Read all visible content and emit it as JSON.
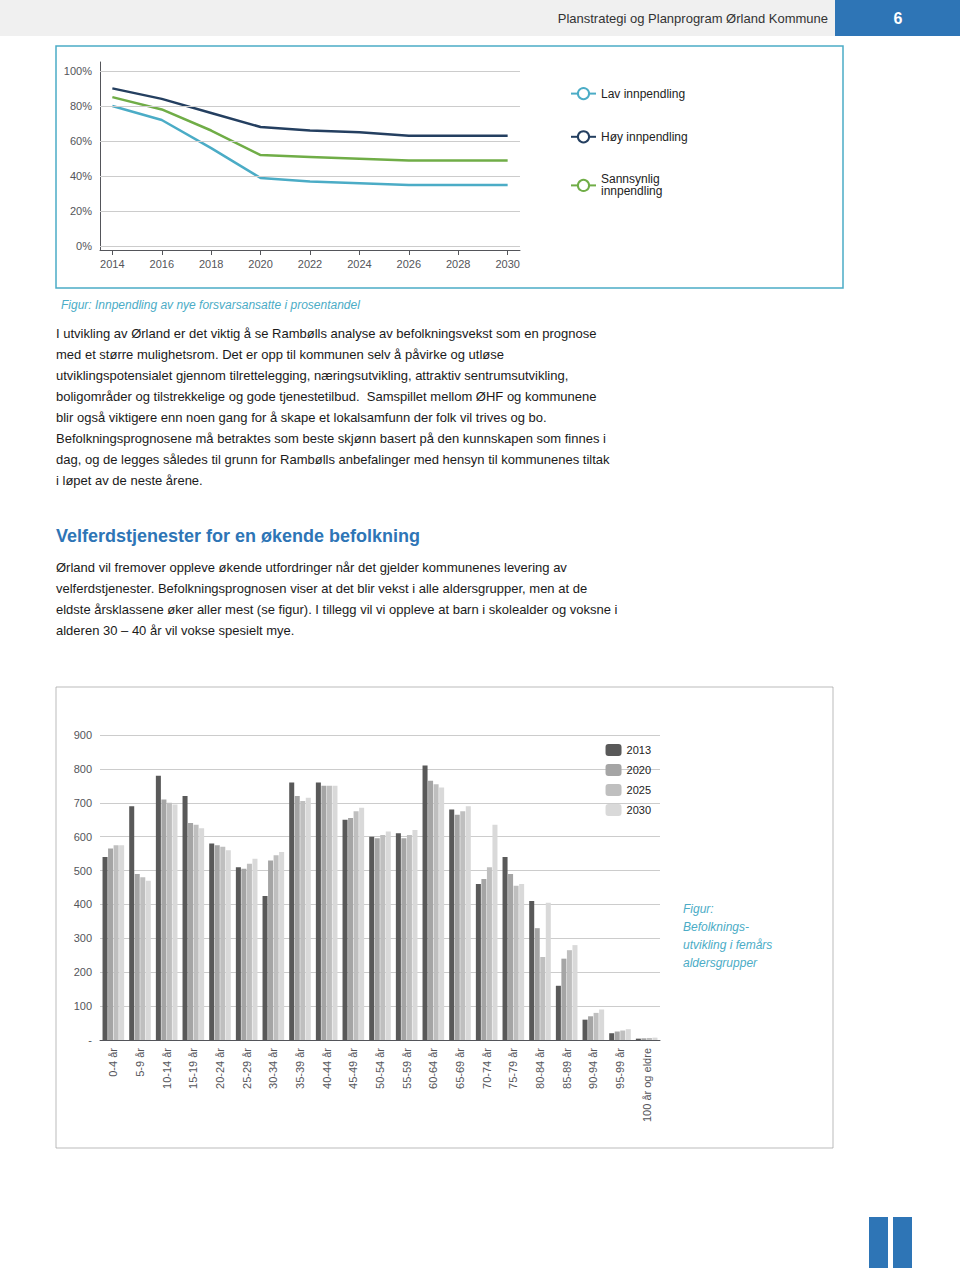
{
  "chart_data": [
    {
      "type": "line",
      "title": "Figur: Innpendling av nye forsvarsansatte i prosentandel",
      "x": [
        2014,
        2016,
        2018,
        2020,
        2022,
        2024,
        2026,
        2028,
        2030
      ],
      "series": [
        {
          "name": "Lav innpendling",
          "color": "#4bacc6",
          "values": [
            0.8,
            0.72,
            0.56,
            0.39,
            0.37,
            0.36,
            0.35,
            0.35,
            0.35
          ]
        },
        {
          "name": "Høy innpendling",
          "color": "#243f60",
          "values": [
            0.9,
            0.84,
            0.76,
            0.68,
            0.66,
            0.65,
            0.63,
            0.63,
            0.63
          ]
        },
        {
          "name": "Sannsynlig\ninnpendling",
          "color": "#70ad47",
          "values": [
            0.85,
            0.78,
            0.66,
            0.52,
            0.51,
            0.5,
            0.49,
            0.49,
            0.49
          ]
        }
      ],
      "xlim": [
        2013.5,
        2030.5
      ],
      "xticks": [
        2014,
        2016,
        2018,
        2020,
        2022,
        2024,
        2026,
        2028,
        2030
      ],
      "ylim": [
        -0.02,
        1.05
      ],
      "yticks": [
        {
          "value": 0.0,
          "label": "0%"
        },
        {
          "value": 0.2,
          "label": "20%"
        },
        {
          "value": 0.4,
          "label": "40%"
        },
        {
          "value": 0.6,
          "label": "60%"
        },
        {
          "value": 0.8,
          "label": "80%"
        },
        {
          "value": 1.0,
          "label": "100%"
        }
      ],
      "grid": true,
      "legend": "right",
      "annotations": [
        "Planstrategi og Planprogram Ørland Kommune",
        "6",
        "I utvikling av Ørland er det viktig å se Rambølls analyse av befolkningsvekst som en prognose\nmed et større mulighetsrom. Det er opp til kommunen selv å påvirke og utløse\nutviklingspotensialet gjennom tilrettelegging, næringsutvikling, attraktiv sentrumsutvikling,\nboligområder og tilstrekkelige og gode tjenestetilbud.  Samspillet mellom ØHF og kommunene\nblir også viktigere enn noen gang for å skape et lokalsamfunn der folk vil trives og bo.\nBefolkningsprognosene må betraktes som beste skjønn basert på den kunnskapen som finnes i\ndag, og de legges således til grunn for Rambølls anbefalinger med hensyn til kommunenes tiltak\ni løpet av de neste årene.",
        "Velferdstjenester for en økende befolkning",
        "Ørland vil fremover oppleve økende utfordringer når det gjelder kommunenes levering av\nvelferdstjenester. Befolkningsprognosen viser at det blir vekst i alle aldersgrupper, men at de\neldste årsklassene øker aller mest (se figur). I tillegg vil vi oppleve at barn i skolealder og voksne i\nalderen 30 – 40 år vil vokse spesielt mye."
      ]
    },
    {
      "type": "bar",
      "title": "Figur:\nBefolknings-\nutvikling i femårs\naldersgrupper",
      "categories": [
        "0-4 år",
        "5-9 år",
        "10-14 år",
        "15-19 år",
        "20-24 år",
        "25-29 år",
        "30-34 år",
        "35-39 år",
        "40-44 år",
        "45-49 år",
        "50-54 år",
        "55-59 år",
        "60-64 år",
        "65-69 år",
        "70-74 år",
        "75-79 år",
        "80-84 år",
        "85-89 år",
        "90-94 år",
        "95-99 år",
        "100 år og eldre"
      ],
      "series": [
        {
          "name": "2013",
          "color": "#595959",
          "values": [
            540,
            690,
            780,
            720,
            580,
            510,
            425,
            760,
            760,
            650,
            600,
            610,
            810,
            680,
            460,
            540,
            410,
            160,
            60,
            20,
            4
          ]
        },
        {
          "name": "2020",
          "color": "#a5a5a5",
          "values": [
            565,
            490,
            710,
            640,
            575,
            505,
            530,
            720,
            750,
            655,
            595,
            595,
            765,
            665,
            475,
            490,
            330,
            240,
            70,
            25,
            5
          ]
        },
        {
          "name": "2025",
          "color": "#bfbfbf",
          "values": [
            575,
            480,
            700,
            635,
            570,
            520,
            545,
            705,
            750,
            675,
            605,
            605,
            755,
            675,
            510,
            455,
            245,
            265,
            80,
            28,
            6
          ]
        },
        {
          "name": "2030",
          "color": "#d9d9d9",
          "values": [
            575,
            470,
            695,
            625,
            560,
            535,
            555,
            715,
            750,
            685,
            615,
            620,
            745,
            690,
            635,
            460,
            405,
            280,
            90,
            32,
            7
          ]
        }
      ],
      "ylim": [
        0,
        900
      ],
      "yticks": [
        {
          "value": 0,
          "label": "-"
        },
        100,
        200,
        300,
        400,
        500,
        600,
        700,
        800,
        900
      ],
      "grid": true,
      "legend": "upper right"
    }
  ]
}
